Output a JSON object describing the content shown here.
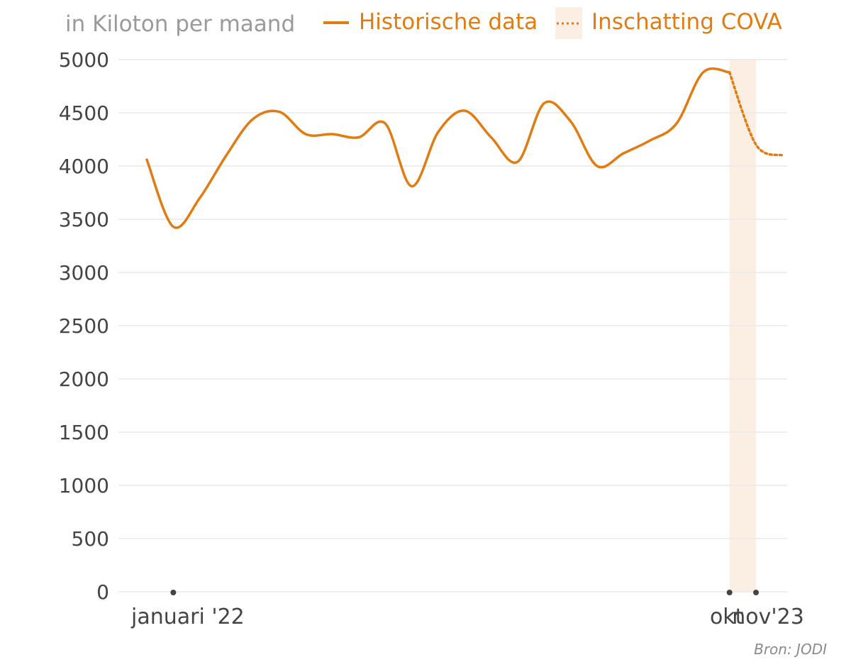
{
  "chart_data": {
    "type": "line",
    "unit_label": "in Kiloton per maand",
    "source": "Bron: JODI",
    "ylim": [
      0,
      5000
    ],
    "yticks": [
      0,
      500,
      1000,
      1500,
      2000,
      2500,
      3000,
      3500,
      4000,
      4500,
      5000
    ],
    "x": [
      "2021-12",
      "2022-01",
      "2022-02",
      "2022-03",
      "2022-04",
      "2022-05",
      "2022-06",
      "2022-07",
      "2022-08",
      "2022-09",
      "2022-10",
      "2022-11",
      "2022-12",
      "2023-01",
      "2023-02",
      "2023-03",
      "2023-04",
      "2023-05",
      "2023-06",
      "2023-07",
      "2023-08",
      "2023-09",
      "2023-10",
      "2023-11",
      "2023-12"
    ],
    "xtick_labels": [
      {
        "x": "2022-01",
        "label": "januari '22"
      },
      {
        "x": "2023-10",
        "label": "okt"
      },
      {
        "x": "2023-11",
        "label": "nov'23"
      }
    ],
    "forecast_band": {
      "from": "2023-10",
      "to": "2023-11",
      "color": "#fbeee3"
    },
    "series": [
      {
        "name": "Historische data",
        "style": "solid",
        "color": "#e17c12",
        "x": [
          "2021-12",
          "2022-01",
          "2022-02",
          "2022-03",
          "2022-04",
          "2022-05",
          "2022-06",
          "2022-07",
          "2022-08",
          "2022-09",
          "2022-10",
          "2022-11",
          "2022-12",
          "2023-01",
          "2023-02",
          "2023-03",
          "2023-04",
          "2023-05",
          "2023-06",
          "2023-07",
          "2023-08",
          "2023-09",
          "2023-10"
        ],
        "values": [
          4060,
          3430,
          3700,
          4100,
          4440,
          4510,
          4300,
          4300,
          4270,
          4400,
          3810,
          4320,
          4520,
          4270,
          4040,
          4590,
          4420,
          4000,
          4120,
          4240,
          4400,
          4880,
          4880
        ]
      },
      {
        "name": "Inschatting COVA",
        "style": "dotted",
        "color": "#e17c12",
        "x": [
          "2023-10",
          "2023-11",
          "2023-12"
        ],
        "values": [
          4880,
          4200,
          4100
        ]
      }
    ]
  }
}
